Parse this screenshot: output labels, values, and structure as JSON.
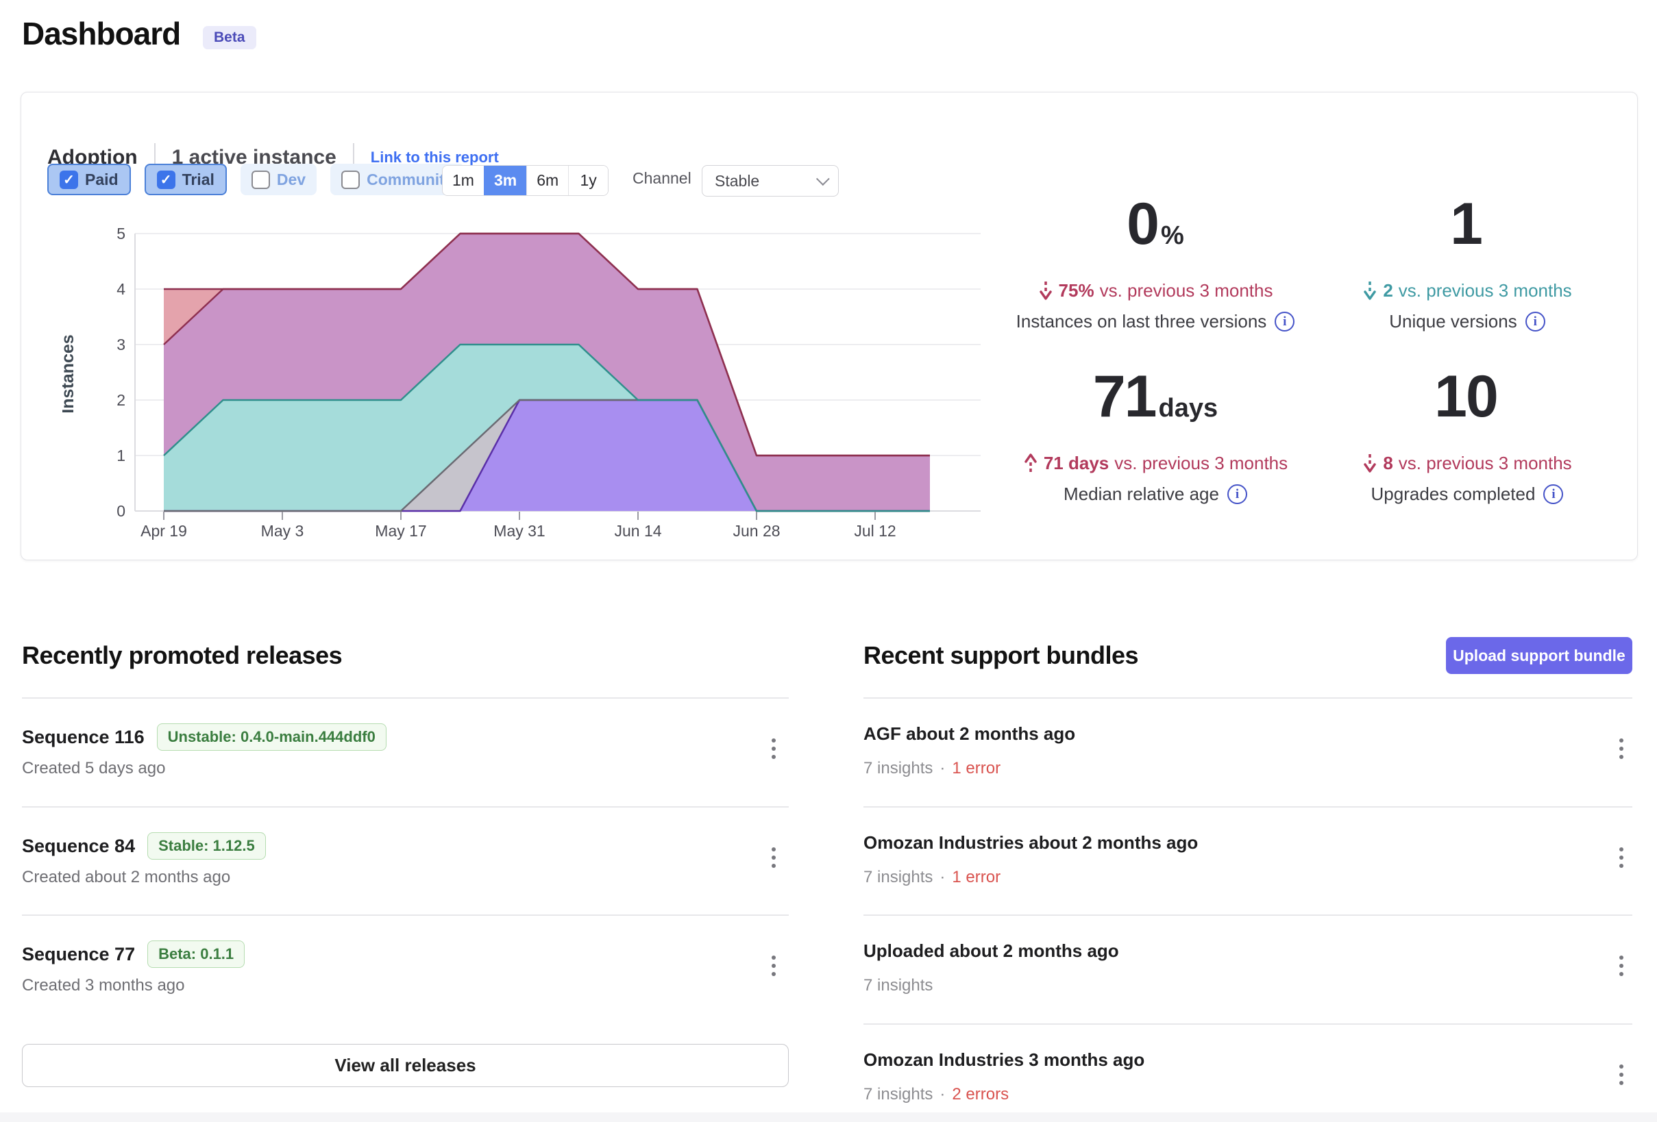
{
  "page": {
    "title": "Dashboard",
    "beta_badge": "Beta"
  },
  "adoption": {
    "title": "Adoption",
    "active_instances": "1 active instance",
    "report_link": "Link to this report",
    "filters": [
      {
        "label": "Paid",
        "checked": true
      },
      {
        "label": "Trial",
        "checked": true
      },
      {
        "label": "Dev",
        "checked": false
      },
      {
        "label": "Community",
        "checked": false
      }
    ],
    "ranges": [
      "1m",
      "3m",
      "6m",
      "1y"
    ],
    "selected_range": "3m",
    "channel_label": "Channel",
    "channel_value": "Stable",
    "stats": [
      {
        "value": "0",
        "suffix": "%",
        "delta_dir": "down",
        "delta_color": "red",
        "delta": "75%",
        "delta_rest": " vs. previous 3 months",
        "label": "Instances on last three versions"
      },
      {
        "value": "1",
        "suffix": "",
        "delta_dir": "down",
        "delta_color": "teal",
        "delta": "2",
        "delta_rest": " vs. previous 3 months",
        "label": "Unique versions"
      },
      {
        "value": "71",
        "suffix": "days",
        "delta_dir": "up",
        "delta_color": "red",
        "delta": "71 days",
        "delta_rest": " vs. previous 3 months",
        "label": "Median relative age"
      },
      {
        "value": "10",
        "suffix": "",
        "delta_dir": "down",
        "delta_color": "red",
        "delta": "8",
        "delta_rest": " vs. previous 3 months",
        "label": "Upgrades completed"
      }
    ]
  },
  "chart_data": {
    "type": "area",
    "stacked": true,
    "title": "Adoption",
    "xlabel": "",
    "ylabel": "Instances",
    "ylim": [
      0,
      5
    ],
    "grid": true,
    "legend": "none",
    "x": [
      "Apr 19",
      "Apr 26",
      "May 3",
      "May 10",
      "May 17",
      "May 24",
      "May 31",
      "Jun 7",
      "Jun 14",
      "Jun 21",
      "Jun 28",
      "Jul 5",
      "Jul 12",
      "Jul 17"
    ],
    "x_tick_labels": [
      "Apr 19",
      "May 3",
      "May 17",
      "May 31",
      "Jun 14",
      "Jun 28",
      "Jul 12"
    ],
    "series": [
      {
        "name": "version-purple",
        "fill": "#a88ef0",
        "stroke": "#5a2fa8",
        "values": [
          0,
          0,
          0,
          0,
          0,
          0,
          2,
          2,
          2,
          2,
          0,
          0,
          0,
          0
        ]
      },
      {
        "name": "version-gray",
        "fill": "#c6c4cc",
        "stroke": "#6a6a72",
        "values": [
          0,
          0,
          0,
          0,
          0,
          1,
          0,
          0,
          0,
          0,
          0,
          0,
          0,
          0
        ]
      },
      {
        "name": "version-teal",
        "fill": "#a5dcda",
        "stroke": "#2f8f8c",
        "values": [
          1,
          2,
          2,
          2,
          2,
          2,
          1,
          1,
          0,
          0,
          0,
          0,
          0,
          0
        ]
      },
      {
        "name": "version-mauve",
        "fill": "#c994c7",
        "stroke": "#8e3050",
        "values": [
          2,
          2,
          2,
          2,
          2,
          2,
          2,
          2,
          2,
          2,
          1,
          1,
          1,
          1
        ]
      },
      {
        "name": "version-salmon",
        "fill": "#e4a3ac",
        "stroke": "#8e3050",
        "values": [
          1,
          0,
          0,
          0,
          0,
          0,
          0,
          0,
          0,
          0,
          0,
          0,
          0,
          0
        ]
      }
    ]
  },
  "releases": {
    "heading": "Recently promoted releases",
    "items": [
      {
        "title": "Sequence 116",
        "badge": "Unstable: 0.4.0-main.444ddf0",
        "created": "Created 5 days ago"
      },
      {
        "title": "Sequence 84",
        "badge": "Stable: 1.12.5",
        "created": "Created about 2 months ago"
      },
      {
        "title": "Sequence 77",
        "badge": "Beta: 0.1.1",
        "created": "Created 3 months ago"
      }
    ],
    "view_all_label": "View all releases"
  },
  "bundles": {
    "heading": "Recent support bundles",
    "upload_label": "Upload support bundle",
    "items": [
      {
        "title": "AGF about 2 months ago",
        "insights": "7 insights",
        "errors": "1 error"
      },
      {
        "title": "Omozan Industries about 2 months ago",
        "insights": "7 insights",
        "errors": "1 error"
      },
      {
        "title": "Uploaded about 2 months ago",
        "insights": "7 insights",
        "errors": ""
      },
      {
        "title": "Omozan Industries 3 months ago",
        "insights": "7 insights",
        "errors": "2 errors"
      }
    ]
  },
  "colors": {
    "accent_link": "#3e6ff2",
    "selected_range_bg": "#5b8bf0",
    "upload_button_bg": "#6b68e9",
    "delta_red": "#b23a5c",
    "delta_teal": "#3f9aa3",
    "error_red": "#d9534f",
    "badge_green_text": "#3a7d3f",
    "beta_badge_text": "#4b4bb8"
  }
}
